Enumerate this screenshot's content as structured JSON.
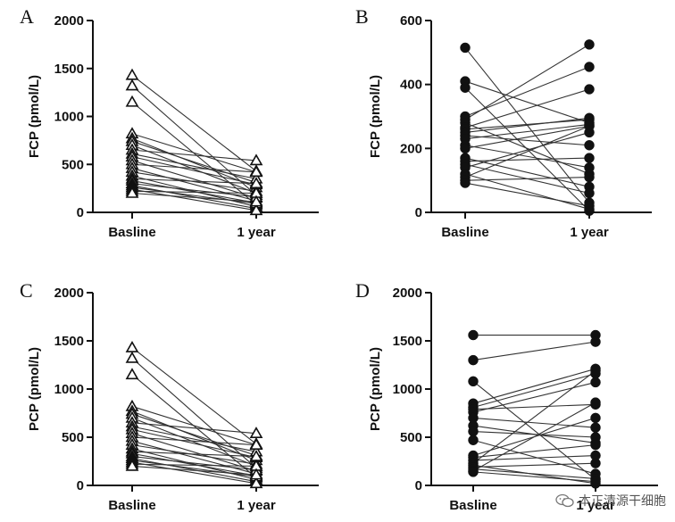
{
  "watermark": "本正清源干细胞",
  "chart_data": [
    {
      "panel": "A",
      "type": "paired-scatter",
      "marker": "triangle-open",
      "categories": [
        "Basline",
        "1 year"
      ],
      "ylabel": "FCP (pmol/L)",
      "ylim": [
        0,
        2000
      ],
      "yticks": [
        0,
        500,
        1000,
        1500,
        2000
      ],
      "pairs": [
        [
          1430,
          430
        ],
        [
          1320,
          180
        ],
        [
          1150,
          80
        ],
        [
          820,
          420
        ],
        [
          770,
          260
        ],
        [
          740,
          310
        ],
        [
          700,
          200
        ],
        [
          650,
          540
        ],
        [
          610,
          350
        ],
        [
          580,
          290
        ],
        [
          540,
          150
        ],
        [
          500,
          420
        ],
        [
          460,
          120
        ],
        [
          420,
          220
        ],
        [
          380,
          60
        ],
        [
          350,
          300
        ],
        [
          330,
          100
        ],
        [
          300,
          160
        ],
        [
          280,
          40
        ],
        [
          260,
          90
        ],
        [
          240,
          20
        ],
        [
          220,
          200
        ],
        [
          200,
          110
        ]
      ]
    },
    {
      "panel": "B",
      "type": "paired-scatter",
      "marker": "circle-filled",
      "categories": [
        "Basline",
        "1 year"
      ],
      "ylabel": "FCP (pmol/L)",
      "ylim": [
        0,
        600
      ],
      "yticks": [
        0,
        200,
        400,
        600
      ],
      "pairs": [
        [
          515,
          30
        ],
        [
          410,
          280
        ],
        [
          390,
          5
        ],
        [
          300,
          455
        ],
        [
          290,
          525
        ],
        [
          280,
          120
        ],
        [
          265,
          385
        ],
        [
          260,
          290
        ],
        [
          250,
          295
        ],
        [
          240,
          210
        ],
        [
          230,
          275
        ],
        [
          210,
          140
        ],
        [
          200,
          270
        ],
        [
          170,
          80
        ],
        [
          160,
          170
        ],
        [
          150,
          60
        ],
        [
          140,
          250
        ],
        [
          120,
          10
        ],
        [
          110,
          270
        ],
        [
          100,
          110
        ],
        [
          92,
          20
        ]
      ]
    },
    {
      "panel": "C",
      "type": "paired-scatter",
      "marker": "triangle-open",
      "categories": [
        "Basline",
        "1 year"
      ],
      "ylabel": "PCP (pmol/L)",
      "ylim": [
        0,
        2000
      ],
      "yticks": [
        0,
        500,
        1000,
        1500,
        2000
      ],
      "pairs": [
        [
          1430,
          430
        ],
        [
          1320,
          180
        ],
        [
          1150,
          80
        ],
        [
          820,
          420
        ],
        [
          770,
          260
        ],
        [
          740,
          310
        ],
        [
          700,
          200
        ],
        [
          650,
          540
        ],
        [
          610,
          350
        ],
        [
          580,
          290
        ],
        [
          540,
          150
        ],
        [
          500,
          420
        ],
        [
          460,
          120
        ],
        [
          420,
          220
        ],
        [
          380,
          60
        ],
        [
          350,
          300
        ],
        [
          330,
          100
        ],
        [
          300,
          160
        ],
        [
          280,
          40
        ],
        [
          260,
          90
        ],
        [
          240,
          20
        ],
        [
          220,
          200
        ],
        [
          200,
          110
        ]
      ]
    },
    {
      "panel": "D",
      "type": "paired-scatter",
      "marker": "circle-filled",
      "categories": [
        "Basline",
        "1 year"
      ],
      "ylabel": "PCP (pmol/L)",
      "ylim": [
        0,
        2000
      ],
      "yticks": [
        0,
        500,
        1000,
        1500,
        2000
      ],
      "pairs": [
        [
          1560,
          1560
        ],
        [
          1300,
          1490
        ],
        [
          1080,
          60
        ],
        [
          850,
          1210
        ],
        [
          810,
          1160
        ],
        [
          790,
          840
        ],
        [
          760,
          1070
        ],
        [
          700,
          600
        ],
        [
          620,
          440
        ],
        [
          560,
          500
        ],
        [
          470,
          120
        ],
        [
          310,
          700
        ],
        [
          290,
          420
        ],
        [
          260,
          310
        ],
        [
          230,
          1190
        ],
        [
          210,
          20
        ],
        [
          190,
          230
        ],
        [
          170,
          70
        ],
        [
          150,
          860
        ],
        [
          140,
          40
        ]
      ]
    }
  ]
}
